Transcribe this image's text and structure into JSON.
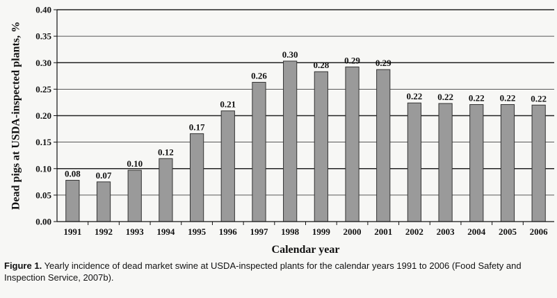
{
  "chart_data": {
    "type": "bar",
    "title": "",
    "xlabel": "Calendar year",
    "ylabel": "Dead pigs at USDA-inspected plants, %",
    "categories": [
      "1991",
      "1992",
      "1993",
      "1994",
      "1995",
      "1996",
      "1997",
      "1998",
      "1999",
      "2000",
      "2001",
      "2002",
      "2003",
      "2004",
      "2005",
      "2006"
    ],
    "values": [
      0.078,
      0.075,
      0.097,
      0.119,
      0.166,
      0.209,
      0.263,
      0.303,
      0.283,
      0.292,
      0.287,
      0.224,
      0.223,
      0.221,
      0.221,
      0.22
    ],
    "data_labels": [
      "0.08",
      "0.07",
      "0.10",
      "0.12",
      "0.17",
      "0.21",
      "0.26",
      "0.30",
      "0.28",
      "0.29",
      "0.29",
      "0.22",
      "0.22",
      "0.22",
      "0.22",
      "0.22"
    ],
    "ylim": [
      0,
      0.4
    ],
    "yticks": [
      "0.00",
      "0.05",
      "0.10",
      "0.15",
      "0.20",
      "0.25",
      "0.30",
      "0.35",
      "0.40"
    ],
    "grid": "horizontal",
    "colors": {
      "bar": "#9a9a9a",
      "bar_stroke": "#333333",
      "grid": "#222222"
    }
  },
  "caption": {
    "label": "Figure 1.",
    "text": " Yearly incidence of dead market swine at USDA-inspected plants for the calendar years 1991 to 2006 (Food Safety and Inspection Service, 2007b)."
  }
}
